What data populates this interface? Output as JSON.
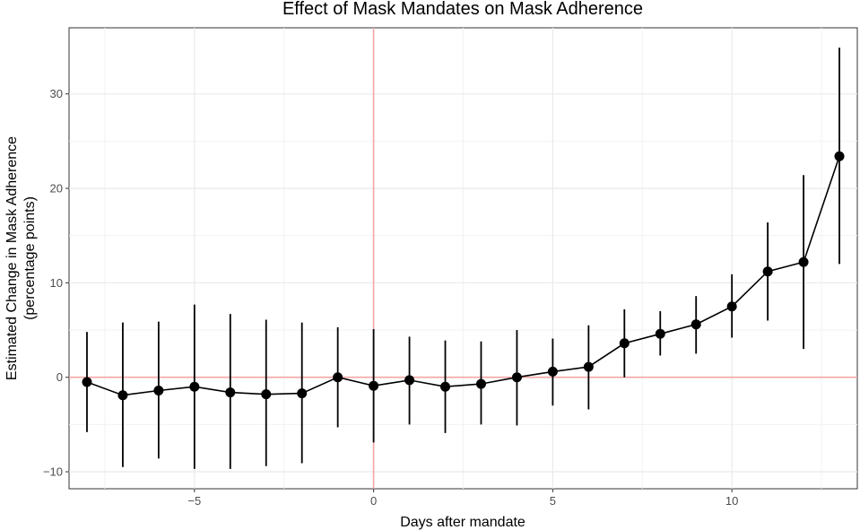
{
  "chart_data": {
    "type": "line",
    "title": "Effect of Mask Mandates on Mask Adherence",
    "xlabel": "Days after mandate",
    "ylabel_lines": [
      "Estimated Change in Mask Adherence",
      "(percentage points)"
    ],
    "xlim": [
      -8.5,
      13.5
    ],
    "ylim": [
      -11.8,
      37.0
    ],
    "x_ticks": [
      -5,
      0,
      5,
      10
    ],
    "x_tick_labels": [
      "−5",
      "0",
      "5",
      "10"
    ],
    "y_ticks": [
      -10,
      0,
      10,
      20,
      30
    ],
    "y_tick_labels": [
      "−10",
      "0",
      "10",
      "20",
      "30"
    ],
    "grid": true,
    "reference_lines": {
      "x": 0,
      "y": 0,
      "color": "#f4a6a6"
    },
    "series": [
      {
        "points": [
          {
            "x": -8,
            "y": -0.5,
            "lo": -5.8,
            "hi": 4.8
          },
          {
            "x": -7,
            "y": -1.9,
            "lo": -9.5,
            "hi": 5.8
          },
          {
            "x": -6,
            "y": -1.4,
            "lo": -8.6,
            "hi": 5.9
          },
          {
            "x": -5,
            "y": -1.0,
            "lo": -9.7,
            "hi": 7.7
          },
          {
            "x": -4,
            "y": -1.6,
            "lo": -9.7,
            "hi": 6.7
          },
          {
            "x": -3,
            "y": -1.8,
            "lo": -9.4,
            "hi": 6.1
          },
          {
            "x": -2,
            "y": -1.7,
            "lo": -9.1,
            "hi": 5.8
          },
          {
            "x": -1,
            "y": 0.0,
            "lo": -5.3,
            "hi": 5.3
          },
          {
            "x": 0,
            "y": -0.9,
            "lo": -6.9,
            "hi": 5.1
          },
          {
            "x": 1,
            "y": -0.3,
            "lo": -5.0,
            "hi": 4.3
          },
          {
            "x": 2,
            "y": -1.0,
            "lo": -5.9,
            "hi": 3.9
          },
          {
            "x": 3,
            "y": -0.7,
            "lo": -5.0,
            "hi": 3.8
          },
          {
            "x": 4,
            "y": 0.0,
            "lo": -5.1,
            "hi": 5.0
          },
          {
            "x": 5,
            "y": 0.6,
            "lo": -3.0,
            "hi": 4.1
          },
          {
            "x": 6,
            "y": 1.1,
            "lo": -3.4,
            "hi": 5.5
          },
          {
            "x": 7,
            "y": 3.6,
            "lo": 0.0,
            "hi": 7.2
          },
          {
            "x": 8,
            "y": 4.6,
            "lo": 2.3,
            "hi": 7.0
          },
          {
            "x": 9,
            "y": 5.6,
            "lo": 2.5,
            "hi": 8.6
          },
          {
            "x": 10,
            "y": 7.5,
            "lo": 4.2,
            "hi": 10.9
          },
          {
            "x": 11,
            "y": 11.2,
            "lo": 6.0,
            "hi": 16.4
          },
          {
            "x": 12,
            "y": 12.2,
            "lo": 3.0,
            "hi": 21.4
          },
          {
            "x": 13,
            "y": 23.4,
            "lo": 12.0,
            "hi": 34.9
          }
        ],
        "color": "#000000"
      }
    ]
  }
}
